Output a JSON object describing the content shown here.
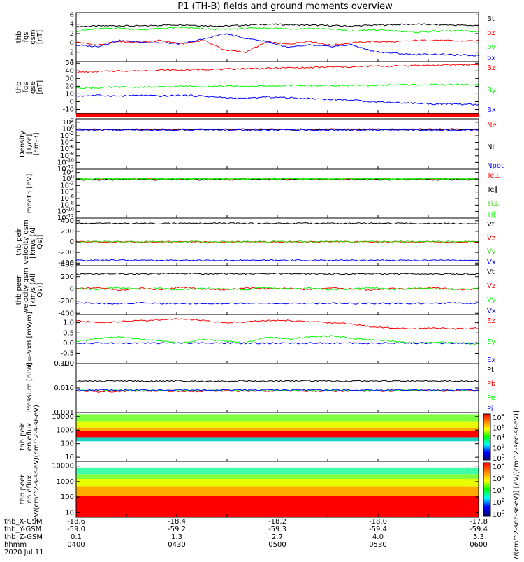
{
  "title": "P1 (TH-B) fields and ground moments overview",
  "colors": {
    "black": "#000000",
    "red": "#ff0000",
    "green": "#00ff00",
    "blue": "#0000ff",
    "greenDark": "#2bd400"
  },
  "orbit": {
    "labels": [
      "thb_X-GSM",
      "thb_Y-GSM",
      "thb_Z-GSM",
      "hhmm",
      "2020 Jul 11"
    ],
    "columns": [
      {
        "x": "-18.6",
        "y": "-59.0",
        "z": "0.1",
        "hhmm": "0400"
      },
      {
        "x": "-18.4",
        "y": "-59.2",
        "z": "1.3",
        "hhmm": "0430"
      },
      {
        "x": "-18.2",
        "y": "-59.3",
        "z": "2.7",
        "hhmm": "0500"
      },
      {
        "x": "-18.0",
        "y": "-59.4",
        "z": "4.0",
        "hhmm": "0530"
      },
      {
        "x": "-17.8",
        "y": "-59.4",
        "z": "5.3",
        "hhmm": "0600"
      }
    ]
  },
  "colorbar": {
    "label": "[eV/(cm^2-sec-sr-eV)] [eV/(cm^2-sec-sr-eV)]",
    "ticks_upper": [
      "10^8",
      "10^6",
      "10^4",
      "10^2",
      "10^0"
    ],
    "ticks_lower": [
      "10^8",
      "10^6",
      "10^4",
      "10^2",
      "10^0"
    ]
  },
  "chart_data": [
    {
      "type": "line",
      "ylabel": "thb fgs gsm [nT]",
      "ylim": [
        -4,
        6.5
      ],
      "yticks": [
        "6",
        "4",
        "2",
        "0",
        "-2",
        "-4"
      ],
      "series": [
        {
          "name": "Bt",
          "color": "#000000",
          "values": [
            3.5,
            3.6,
            3.7,
            3.6,
            3.8,
            3.9,
            3.7,
            3.6,
            3.8,
            4.0,
            3.9,
            3.8,
            3.7,
            3.6,
            3.8,
            3.9,
            4.0,
            3.9,
            3.8,
            3.7
          ]
        },
        {
          "name": "bz",
          "color": "#ff0000",
          "values": [
            0.2,
            -0.5,
            0.3,
            0.1,
            0.5,
            -0.2,
            0.6,
            -1.5,
            -2.0,
            0.2,
            -0.3,
            0.4,
            -0.5,
            0.0,
            0.3,
            0.2,
            0.5,
            0.6,
            0.4,
            0.5
          ]
        },
        {
          "name": "by",
          "color": "#00ff00",
          "values": [
            2.5,
            3.0,
            3.2,
            2.8,
            3.1,
            3.3,
            3.0,
            2.9,
            3.1,
            3.2,
            3.0,
            3.1,
            3.0,
            2.5,
            2.8,
            2.6,
            2.3,
            2.5,
            2.6,
            2.4
          ]
        },
        {
          "name": "bx",
          "color": "#0000ff",
          "values": [
            -0.5,
            -0.8,
            0.5,
            0.2,
            0.0,
            -0.2,
            0.8,
            2.0,
            1.0,
            0.3,
            -1.0,
            -0.5,
            -0.8,
            -0.4,
            -1.8,
            -2.2,
            -2.5,
            -2.4,
            -2.6,
            -2.7
          ]
        }
      ]
    },
    {
      "type": "line",
      "ylabel": "thb fgs gse [nT]",
      "ylim": [
        -15,
        52
      ],
      "yticks": [
        "50",
        "40",
        "30",
        "20",
        "10",
        "0",
        "-10"
      ],
      "series": [
        {
          "name": "Bz",
          "color": "#ff0000",
          "values": [
            38,
            39,
            40,
            40,
            41,
            41,
            42,
            42,
            43,
            43,
            44,
            44,
            45,
            45,
            46,
            46,
            47,
            47,
            48,
            48
          ]
        },
        {
          "name": "By",
          "color": "#00ff00",
          "values": [
            18,
            18,
            19,
            19,
            19,
            20,
            20,
            20,
            20,
            20,
            21,
            21,
            21,
            21,
            21,
            22,
            22,
            22,
            22,
            22
          ]
        },
        {
          "name": "Bx",
          "color": "#0000ff",
          "values": [
            7,
            8,
            7,
            8,
            7,
            8,
            7,
            5,
            4,
            6,
            5,
            4,
            3,
            2,
            0,
            -1,
            -2,
            -3,
            -3,
            -4
          ]
        }
      ]
    },
    {
      "type": "line",
      "ylabel": "Density [1/cc] [cm-3]",
      "ylim": [
        -12,
        3
      ],
      "log": true,
      "yticks": [
        "10^2",
        "10^0",
        "10^-2",
        "10^-4",
        "10^-6",
        "10^-8",
        "10^-10",
        "10^-12"
      ],
      "series": [
        {
          "name": "Ne",
          "color": "#ff0000",
          "values": [
            -0.1,
            -0.1,
            -0.1,
            -0.1,
            -0.1,
            -0.1,
            -0.1,
            -0.1,
            -0.1,
            -0.1,
            -0.1,
            -0.1,
            -0.1,
            -0.1,
            -0.1,
            -0.1,
            -0.1,
            -0.1,
            -0.1,
            -0.1
          ]
        },
        {
          "name": "Ni",
          "color": "#000000",
          "values": [
            -0.2,
            -0.2,
            -0.2,
            -0.2,
            -0.2,
            -0.2,
            -0.2,
            -0.2,
            -0.2,
            -0.2,
            -0.2,
            -0.2,
            -0.2,
            -0.2,
            -0.2,
            -0.2,
            -0.2,
            -0.2,
            -0.2,
            -0.2
          ]
        },
        {
          "name": "Npot",
          "color": "#0000ff",
          "values": [
            -0.3,
            -0.3,
            -0.3,
            -0.3,
            -0.3,
            -0.3,
            -0.3,
            -0.3,
            -0.3,
            -0.3,
            -0.3,
            -0.3,
            -0.3,
            -0.3,
            -0.3,
            -0.3,
            -0.3,
            -0.3,
            -0.3,
            -0.3
          ]
        }
      ]
    },
    {
      "type": "line",
      "ylabel": "moqt3 [eV]",
      "ylim": [
        -12,
        3
      ],
      "log": true,
      "yticks": [
        "10^2",
        "10^0",
        "10^-2",
        "10^-4",
        "10^-6",
        "10^-8",
        "10^-10",
        "10^-12"
      ],
      "series": [
        {
          "name": "Te⊥",
          "color": "#ff0000",
          "values": [
            -0.1,
            -0.1,
            -0.1,
            -0.1,
            -0.1,
            -0.1,
            -0.1,
            -0.1,
            -0.1,
            -0.1,
            -0.1,
            -0.1,
            -0.1,
            -0.1,
            -0.1,
            -0.1,
            -0.1,
            -0.1,
            -0.1,
            -0.1
          ]
        },
        {
          "name": "Te∥",
          "color": "#000000",
          "values": [
            -0.2,
            -0.2,
            -0.2,
            -0.2,
            -0.2,
            -0.2,
            -0.2,
            -0.2,
            -0.2,
            -0.2,
            -0.2,
            -0.2,
            -0.2,
            -0.2,
            -0.2,
            -0.2,
            -0.2,
            -0.2,
            -0.2,
            -0.2
          ]
        },
        {
          "name": "Ti⊥",
          "color": "#2bd400",
          "values": [
            0.0,
            0.0,
            0.0,
            0.0,
            0.0,
            0.0,
            0.0,
            0.0,
            0.0,
            0.0,
            0.0,
            0.0,
            0.0,
            0.0,
            0.0,
            0.0,
            0.0,
            0.0,
            0.0,
            0.0
          ]
        },
        {
          "name": "Ti∥",
          "color": "#00ff00",
          "values": [
            0.1,
            0.1,
            0.1,
            0.1,
            0.1,
            0.1,
            0.1,
            0.1,
            0.1,
            0.1,
            0.1,
            0.1,
            0.1,
            0.1,
            0.1,
            0.1,
            0.1,
            0.1,
            0.1,
            0.1
          ]
        }
      ]
    },
    {
      "type": "line",
      "ylabel": "thb peir velocity gsm [km/s (All Qs)]",
      "ylim": [
        -450,
        450
      ],
      "yticks": [
        "400",
        "200",
        "0",
        "-200",
        "-400"
      ],
      "series": [
        {
          "name": "Vt",
          "color": "#000000",
          "values": [
            350,
            352,
            348,
            350,
            351,
            349,
            350,
            352,
            348,
            350,
            349,
            351,
            350,
            348,
            352,
            350,
            349,
            351,
            350,
            350
          ]
        },
        {
          "name": "Vz",
          "color": "#ff0000",
          "values": [
            0,
            0,
            0,
            0,
            0,
            0,
            0,
            0,
            0,
            0,
            0,
            0,
            0,
            0,
            0,
            0,
            0,
            0,
            0,
            0
          ]
        },
        {
          "name": "Vy",
          "color": "#2bd400",
          "values": [
            5,
            5,
            5,
            5,
            5,
            5,
            5,
            5,
            5,
            5,
            5,
            5,
            5,
            5,
            5,
            5,
            5,
            5,
            5,
            5
          ]
        },
        {
          "name": "Vx",
          "color": "#0000ff",
          "values": [
            -350,
            -352,
            -348,
            -350,
            -351,
            -349,
            -350,
            -352,
            -348,
            -350,
            -349,
            -351,
            -350,
            -348,
            -352,
            -350,
            -349,
            -351,
            -350,
            -350
          ]
        }
      ]
    },
    {
      "type": "line",
      "ylabel": "thb peer velocity gsm [km/s (All Qs)]",
      "ylim": [
        -420,
        380
      ],
      "yticks": [
        "400",
        "200",
        "0",
        "-200",
        "-400"
      ],
      "series": [
        {
          "name": "Vt",
          "color": "#000000",
          "values": [
            240,
            245,
            250,
            242,
            248,
            252,
            246,
            250,
            244,
            248,
            250,
            246,
            242,
            248,
            250,
            244,
            246,
            248,
            242,
            245
          ]
        },
        {
          "name": "Vz",
          "color": "#ff0000",
          "values": [
            0,
            20,
            -20,
            10,
            -10,
            30,
            0,
            -20,
            20,
            0,
            10,
            -10,
            20,
            0,
            -20,
            10,
            0,
            20,
            -10,
            0
          ]
        },
        {
          "name": "Vy",
          "color": "#00ff00",
          "values": [
            10,
            -10,
            20,
            0,
            10,
            -20,
            10,
            0,
            -10,
            20,
            0,
            10,
            -10,
            0,
            20,
            -10,
            10,
            0,
            -10,
            10
          ]
        },
        {
          "name": "Vx",
          "color": "#0000ff",
          "values": [
            -230,
            -235,
            -240,
            -232,
            -238,
            -242,
            -236,
            -240,
            -234,
            -238,
            -240,
            -236,
            -232,
            -238,
            -240,
            -234,
            -236,
            -238,
            -232,
            -235
          ]
        }
      ]
    },
    {
      "type": "line",
      "ylabel": "E=-VxB [mV/m]",
      "ylim": [
        -1.0,
        1.4
      ],
      "yticks": [
        "1.0",
        "0.5",
        "0.0",
        "-0.5",
        "-1.0"
      ],
      "series": [
        {
          "name": "Ez",
          "color": "#ff0000",
          "values": [
            1.1,
            1.0,
            1.05,
            1.1,
            1.15,
            1.2,
            1.1,
            1.0,
            1.05,
            1.1,
            1.1,
            1.05,
            1.0,
            0.95,
            0.8,
            0.75,
            0.7,
            0.75,
            0.7,
            0.75
          ]
        },
        {
          "name": "Ey",
          "color": "#00ff00",
          "values": [
            0.1,
            0.2,
            0.3,
            0.2,
            0.1,
            0.0,
            0.2,
            0.1,
            0.0,
            0.3,
            0.2,
            0.3,
            0.35,
            0.25,
            0.15,
            0.1,
            0.0,
            0.05,
            0.0,
            -0.05
          ]
        },
        {
          "name": "Ex",
          "color": "#0000ff",
          "values": [
            0.0,
            0.0,
            0.0,
            0.0,
            0.0,
            0.0,
            0.0,
            0.0,
            0.0,
            0.0,
            0.0,
            0.0,
            0.0,
            0.0,
            0.0,
            0.0,
            0.0,
            0.0,
            0.0,
            0.0
          ]
        }
      ]
    },
    {
      "type": "line",
      "ylabel": "Pressure [nPa]",
      "ylim": [
        -3,
        -1
      ],
      "log": true,
      "yticks": [
        "0.100",
        "0.010",
        "0.001"
      ],
      "series": [
        {
          "name": "Pt",
          "color": "#000000",
          "values": [
            -1.72,
            -1.72,
            -1.71,
            -1.72,
            -1.72,
            -1.71,
            -1.72,
            -1.72,
            -1.71,
            -1.72,
            -1.72,
            -1.71,
            -1.72,
            -1.72,
            -1.71,
            -1.72,
            -1.72,
            -1.71,
            -1.72,
            -1.72
          ]
        },
        {
          "name": "Pb",
          "color": "#ff0000",
          "values": [
            -2.12,
            -2.15,
            -2.14,
            -2.13,
            -2.12,
            -2.15,
            -2.13,
            -2.12,
            -2.14,
            -2.13,
            -2.12,
            -2.14,
            -2.13,
            -2.12,
            -2.13,
            -2.12,
            -2.11,
            -2.12,
            -2.12,
            -2.11
          ]
        },
        {
          "name": "Pe",
          "color": "#00ff00",
          "values": [
            -2.1,
            -2.11,
            -2.1,
            -2.11,
            -2.1,
            -2.11,
            -2.1,
            -2.11,
            -2.1,
            -2.11,
            -2.1,
            -2.11,
            -2.1,
            -2.11,
            -2.1,
            -2.11,
            -2.1,
            -2.11,
            -2.1,
            -2.11
          ]
        },
        {
          "name": "Pi",
          "color": "#0000ff",
          "values": [
            -2.09,
            -2.08,
            -2.09,
            -2.08,
            -2.09,
            -2.08,
            -2.09,
            -2.08,
            -2.09,
            -2.08,
            -2.09,
            -2.08,
            -2.09,
            -2.08,
            -2.09,
            -2.08,
            -2.09,
            -2.08,
            -2.09,
            -2.08
          ]
        }
      ]
    },
    {
      "type": "heatmap",
      "ylabel": "thb peir en eflux eV/(cm^2-s-sr-eV)",
      "ylim": [
        5,
        20000
      ],
      "log": true,
      "yticks": [
        "10000",
        "1000",
        "100",
        "10"
      ],
      "bands": [
        {
          "emin": 4000,
          "emax": 15000,
          "color": "#7fff3f"
        },
        {
          "emin": 1500,
          "emax": 4000,
          "color": "#e8ff00"
        },
        {
          "emin": 900,
          "emax": 1500,
          "color": "#ffaa00"
        },
        {
          "emin": 300,
          "emax": 900,
          "color": "#ff0000"
        },
        {
          "emin": 150,
          "emax": 300,
          "color": "#19d2c4"
        }
      ]
    },
    {
      "type": "heatmap",
      "ylabel": "thb peer en eflux eV/(cm^2-s-sr-eV)",
      "ylim": [
        5,
        20000
      ],
      "log": true,
      "yticks": [
        "10000",
        "1000",
        "100",
        "10"
      ],
      "bands": [
        {
          "emin": 3000,
          "emax": 8000,
          "color": "#3fffaa"
        },
        {
          "emin": 1500,
          "emax": 3000,
          "color": "#7fff3f"
        },
        {
          "emin": 500,
          "emax": 1500,
          "color": "#e8ff00"
        },
        {
          "emin": 120,
          "emax": 500,
          "color": "#ffaa00"
        },
        {
          "emin": 5,
          "emax": 120,
          "color": "#ff0000"
        }
      ]
    }
  ]
}
